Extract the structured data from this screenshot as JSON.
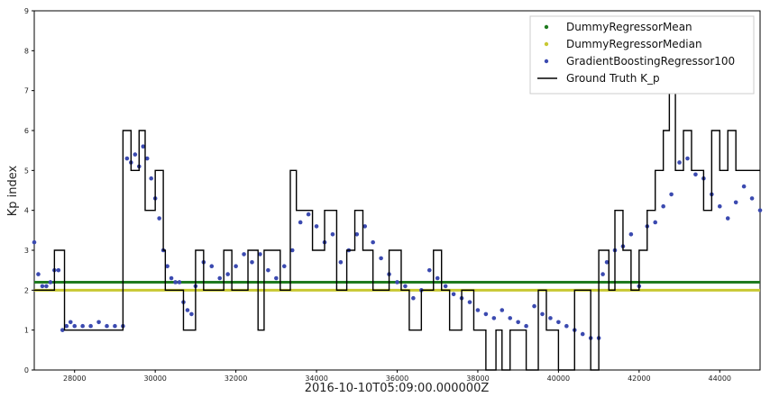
{
  "chart_data": {
    "type": "line",
    "xlabel": "2016-10-10T05:09:00.000000Z",
    "ylabel": "Kp index",
    "xlim": [
      27000,
      45000
    ],
    "ylim": [
      0,
      9
    ],
    "x_ticks": [
      28000,
      30000,
      32000,
      34000,
      36000,
      38000,
      40000,
      42000,
      44000
    ],
    "y_ticks": [
      0,
      1,
      2,
      3,
      4,
      5,
      6,
      7,
      8,
      9
    ],
    "grid": false,
    "legend_position": "top-right",
    "series": [
      {
        "name": "DummyRegressorMean",
        "kind": "hline",
        "color": "#1f7a1f",
        "value": 2.2
      },
      {
        "name": "DummyRegressorMedian",
        "kind": "hline",
        "color": "#c8c832",
        "value": 2.0
      },
      {
        "name": "GradientBoostingRegressor100",
        "kind": "scatter",
        "color": "#3b4ab0",
        "points": [
          [
            27000,
            3.2
          ],
          [
            27100,
            2.4
          ],
          [
            27200,
            2.1
          ],
          [
            27300,
            2.1
          ],
          [
            27400,
            2.2
          ],
          [
            27500,
            2.5
          ],
          [
            27600,
            2.5
          ],
          [
            27700,
            1.0
          ],
          [
            27800,
            1.1
          ],
          [
            27900,
            1.2
          ],
          [
            28000,
            1.1
          ],
          [
            28200,
            1.1
          ],
          [
            28400,
            1.1
          ],
          [
            28600,
            1.2
          ],
          [
            28800,
            1.1
          ],
          [
            29000,
            1.1
          ],
          [
            29200,
            1.1
          ],
          [
            29300,
            5.3
          ],
          [
            29400,
            5.2
          ],
          [
            29500,
            5.4
          ],
          [
            29600,
            5.1
          ],
          [
            29700,
            5.6
          ],
          [
            29800,
            5.3
          ],
          [
            29900,
            4.8
          ],
          [
            30000,
            4.3
          ],
          [
            30100,
            3.8
          ],
          [
            30200,
            3.0
          ],
          [
            30300,
            2.6
          ],
          [
            30400,
            2.3
          ],
          [
            30500,
            2.2
          ],
          [
            30600,
            2.2
          ],
          [
            30700,
            1.7
          ],
          [
            30800,
            1.5
          ],
          [
            30900,
            1.4
          ],
          [
            31000,
            2.1
          ],
          [
            31200,
            2.7
          ],
          [
            31400,
            2.6
          ],
          [
            31600,
            2.3
          ],
          [
            31800,
            2.4
          ],
          [
            32000,
            2.6
          ],
          [
            32200,
            2.9
          ],
          [
            32400,
            2.7
          ],
          [
            32600,
            2.9
          ],
          [
            32800,
            2.5
          ],
          [
            33000,
            2.3
          ],
          [
            33200,
            2.6
          ],
          [
            33400,
            3.0
          ],
          [
            33600,
            3.7
          ],
          [
            33800,
            3.9
          ],
          [
            34000,
            3.6
          ],
          [
            34200,
            3.2
          ],
          [
            34400,
            3.4
          ],
          [
            34600,
            2.7
          ],
          [
            34800,
            3.0
          ],
          [
            35000,
            3.4
          ],
          [
            35200,
            3.6
          ],
          [
            35400,
            3.2
          ],
          [
            35600,
            2.8
          ],
          [
            35800,
            2.4
          ],
          [
            36000,
            2.2
          ],
          [
            36200,
            2.1
          ],
          [
            36400,
            1.8
          ],
          [
            36600,
            2.0
          ],
          [
            36800,
            2.5
          ],
          [
            37000,
            2.3
          ],
          [
            37200,
            2.1
          ],
          [
            37400,
            1.9
          ],
          [
            37600,
            1.8
          ],
          [
            37800,
            1.7
          ],
          [
            38000,
            1.5
          ],
          [
            38200,
            1.4
          ],
          [
            38400,
            1.3
          ],
          [
            38600,
            1.5
          ],
          [
            38800,
            1.3
          ],
          [
            39000,
            1.2
          ],
          [
            39200,
            1.1
          ],
          [
            39400,
            1.6
          ],
          [
            39600,
            1.4
          ],
          [
            39800,
            1.3
          ],
          [
            40000,
            1.2
          ],
          [
            40200,
            1.1
          ],
          [
            40400,
            1.0
          ],
          [
            40600,
            0.9
          ],
          [
            40800,
            0.8
          ],
          [
            41000,
            0.8
          ],
          [
            41100,
            2.4
          ],
          [
            41200,
            2.7
          ],
          [
            41400,
            3.0
          ],
          [
            41600,
            3.1
          ],
          [
            41800,
            3.4
          ],
          [
            42000,
            2.1
          ],
          [
            42200,
            3.6
          ],
          [
            42400,
            3.7
          ],
          [
            42600,
            4.1
          ],
          [
            42800,
            4.4
          ],
          [
            43000,
            5.2
          ],
          [
            43200,
            5.3
          ],
          [
            43400,
            4.9
          ],
          [
            43600,
            4.8
          ],
          [
            43800,
            4.4
          ],
          [
            44000,
            4.1
          ],
          [
            44200,
            3.8
          ],
          [
            44400,
            4.2
          ],
          [
            44600,
            4.6
          ],
          [
            44800,
            4.3
          ],
          [
            45000,
            4.0
          ]
        ]
      },
      {
        "name": "Ground Truth K_p",
        "kind": "step",
        "color": "#000000",
        "points": [
          [
            27000,
            2
          ],
          [
            27500,
            3
          ],
          [
            27750,
            1
          ],
          [
            29200,
            6
          ],
          [
            29400,
            5
          ],
          [
            29600,
            6
          ],
          [
            29750,
            4
          ],
          [
            30000,
            5
          ],
          [
            30200,
            3
          ],
          [
            30250,
            2
          ],
          [
            30700,
            1
          ],
          [
            31000,
            3
          ],
          [
            31200,
            2
          ],
          [
            31700,
            3
          ],
          [
            31900,
            2
          ],
          [
            32300,
            3
          ],
          [
            32550,
            1
          ],
          [
            32700,
            3
          ],
          [
            33100,
            2
          ],
          [
            33350,
            5
          ],
          [
            33500,
            4
          ],
          [
            33900,
            3
          ],
          [
            34200,
            4
          ],
          [
            34500,
            2
          ],
          [
            34750,
            3
          ],
          [
            34950,
            4
          ],
          [
            35150,
            3
          ],
          [
            35400,
            2
          ],
          [
            35800,
            3
          ],
          [
            36100,
            2
          ],
          [
            36300,
            1
          ],
          [
            36600,
            2
          ],
          [
            36900,
            3
          ],
          [
            37100,
            2
          ],
          [
            37300,
            1
          ],
          [
            37600,
            2
          ],
          [
            37900,
            1
          ],
          [
            38200,
            0
          ],
          [
            38450,
            1
          ],
          [
            38600,
            0
          ],
          [
            38800,
            1
          ],
          [
            39200,
            0
          ],
          [
            39500,
            2
          ],
          [
            39700,
            1
          ],
          [
            40000,
            0
          ],
          [
            40400,
            2
          ],
          [
            40800,
            0
          ],
          [
            41000,
            3
          ],
          [
            41250,
            2
          ],
          [
            41400,
            4
          ],
          [
            41600,
            3
          ],
          [
            41800,
            2
          ],
          [
            42000,
            3
          ],
          [
            42200,
            4
          ],
          [
            42400,
            5
          ],
          [
            42600,
            6
          ],
          [
            42750,
            7
          ],
          [
            42900,
            5
          ],
          [
            43100,
            6
          ],
          [
            43300,
            5
          ],
          [
            43600,
            4
          ],
          [
            43800,
            6
          ],
          [
            44000,
            5
          ],
          [
            44200,
            6
          ],
          [
            44400,
            5
          ],
          [
            44700,
            5
          ],
          [
            45000,
            5
          ]
        ]
      }
    ]
  }
}
